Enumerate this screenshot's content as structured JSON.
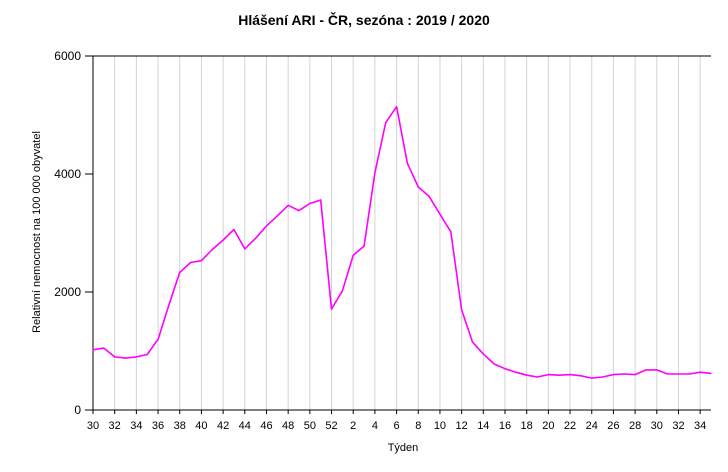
{
  "chart_data": {
    "type": "line",
    "title": "Hlášení ARI - ČR, sezóna : 2019 / 2020",
    "xlabel": "Týden",
    "ylabel": "Relativní nemocnost na 100 000 obyvatel",
    "ylim": [
      0,
      6000
    ],
    "yticks": [
      0,
      2000,
      4000,
      6000
    ],
    "x": [
      30,
      31,
      32,
      33,
      34,
      35,
      36,
      37,
      38,
      39,
      40,
      41,
      42,
      43,
      44,
      45,
      46,
      47,
      48,
      49,
      50,
      51,
      52,
      1,
      2,
      3,
      4,
      5,
      6,
      7,
      8,
      9,
      10,
      11,
      12,
      13,
      14,
      15,
      16,
      17,
      18,
      19,
      20,
      21,
      22,
      23,
      24,
      25,
      26,
      27,
      28,
      29,
      30,
      31,
      32,
      33,
      34,
      35
    ],
    "xtick_labels": [
      "30",
      "32",
      "34",
      "36",
      "38",
      "40",
      "42",
      "44",
      "46",
      "48",
      "50",
      "52",
      "2",
      "4",
      "6",
      "8",
      "10",
      "12",
      "14",
      "16",
      "18",
      "20",
      "22",
      "24",
      "26",
      "28",
      "30",
      "32",
      "34"
    ],
    "grid": true,
    "series": [
      {
        "color": "#ff00ff",
        "values": [
          1020,
          1050,
          900,
          880,
          900,
          940,
          1200,
          1780,
          2330,
          2500,
          2530,
          2720,
          2880,
          3060,
          2730,
          2910,
          3120,
          3290,
          3470,
          3380,
          3500,
          3560,
          1710,
          2020,
          2620,
          2780,
          4020,
          4870,
          5140,
          4180,
          3780,
          3620,
          3320,
          3020,
          1700,
          1150,
          950,
          780,
          700,
          640,
          590,
          560,
          600,
          590,
          600,
          580,
          540,
          560,
          600,
          610,
          600,
          680,
          680,
          610,
          610,
          610,
          640,
          620
        ]
      }
    ]
  }
}
